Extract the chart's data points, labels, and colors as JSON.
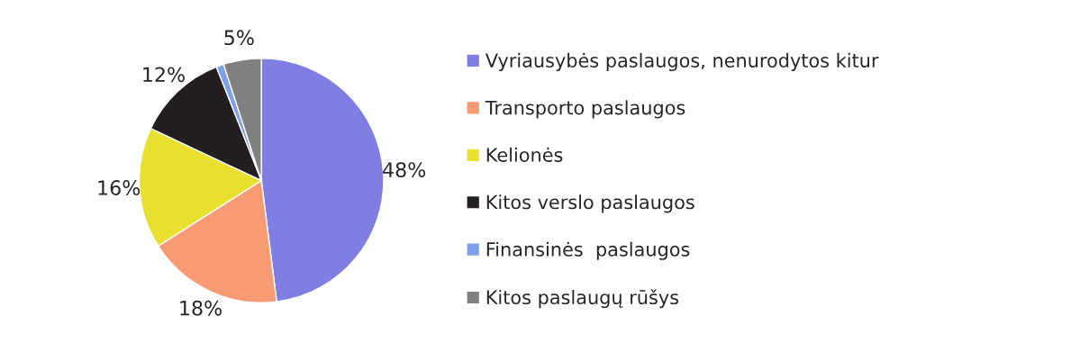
{
  "chart_data": {
    "type": "pie",
    "categories": [
      "Vyriausybės paslaugos, nenurodytos kitur",
      "Transporto paslaugos",
      "Kelionės",
      "Kitos verslo paslaugos",
      "Finansinės  paslaugos",
      "Kitos paslaugų rūšys"
    ],
    "values": [
      48,
      18,
      16,
      12,
      1,
      5
    ],
    "colors": [
      "#7f7fe3",
      "#f89a74",
      "#e8e02e",
      "#231f20",
      "#7f9fe8",
      "#808080"
    ],
    "value_labels": [
      "48%",
      "18%",
      "16%",
      "12%",
      null,
      "5%"
    ],
    "legend": "right"
  }
}
